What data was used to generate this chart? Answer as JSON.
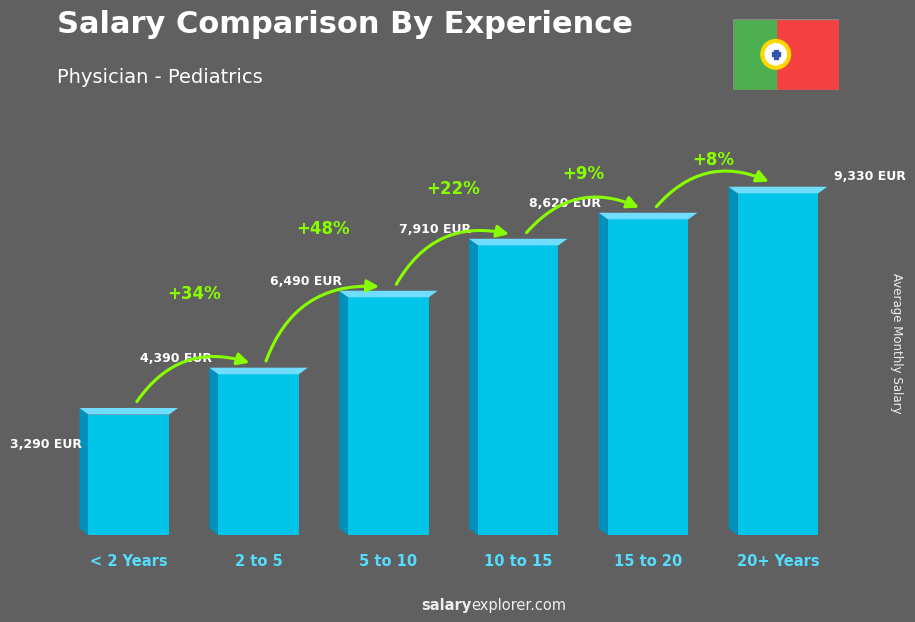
{
  "title": "Salary Comparison By Experience",
  "subtitle": "Physician - Pediatrics",
  "categories": [
    "< 2 Years",
    "2 to 5",
    "5 to 10",
    "10 to 15",
    "15 to 20",
    "20+ Years"
  ],
  "values": [
    3290,
    4390,
    6490,
    7910,
    8620,
    9330
  ],
  "value_labels": [
    "3,290 EUR",
    "4,390 EUR",
    "6,490 EUR",
    "7,910 EUR",
    "8,620 EUR",
    "9,330 EUR"
  ],
  "pct_changes": [
    null,
    "+34%",
    "+48%",
    "+22%",
    "+9%",
    "+8%"
  ],
  "bar_color_main": "#00C5E8",
  "bar_color_left": "#0090BB",
  "bar_color_top": "#70DDFF",
  "background_color": "#606060",
  "title_color": "#FFFFFF",
  "subtitle_color": "#FFFFFF",
  "label_color": "#FFFFFF",
  "cat_color": "#55DDFF",
  "pct_color": "#88FF00",
  "ylabel": "Average Monthly Salary",
  "watermark_salary": "salary",
  "watermark_explorer": "explorer.com",
  "ylim_max": 10500,
  "flag_green": "#4CAF50",
  "flag_red": "#F44040",
  "flag_yellow": "#FFD700"
}
